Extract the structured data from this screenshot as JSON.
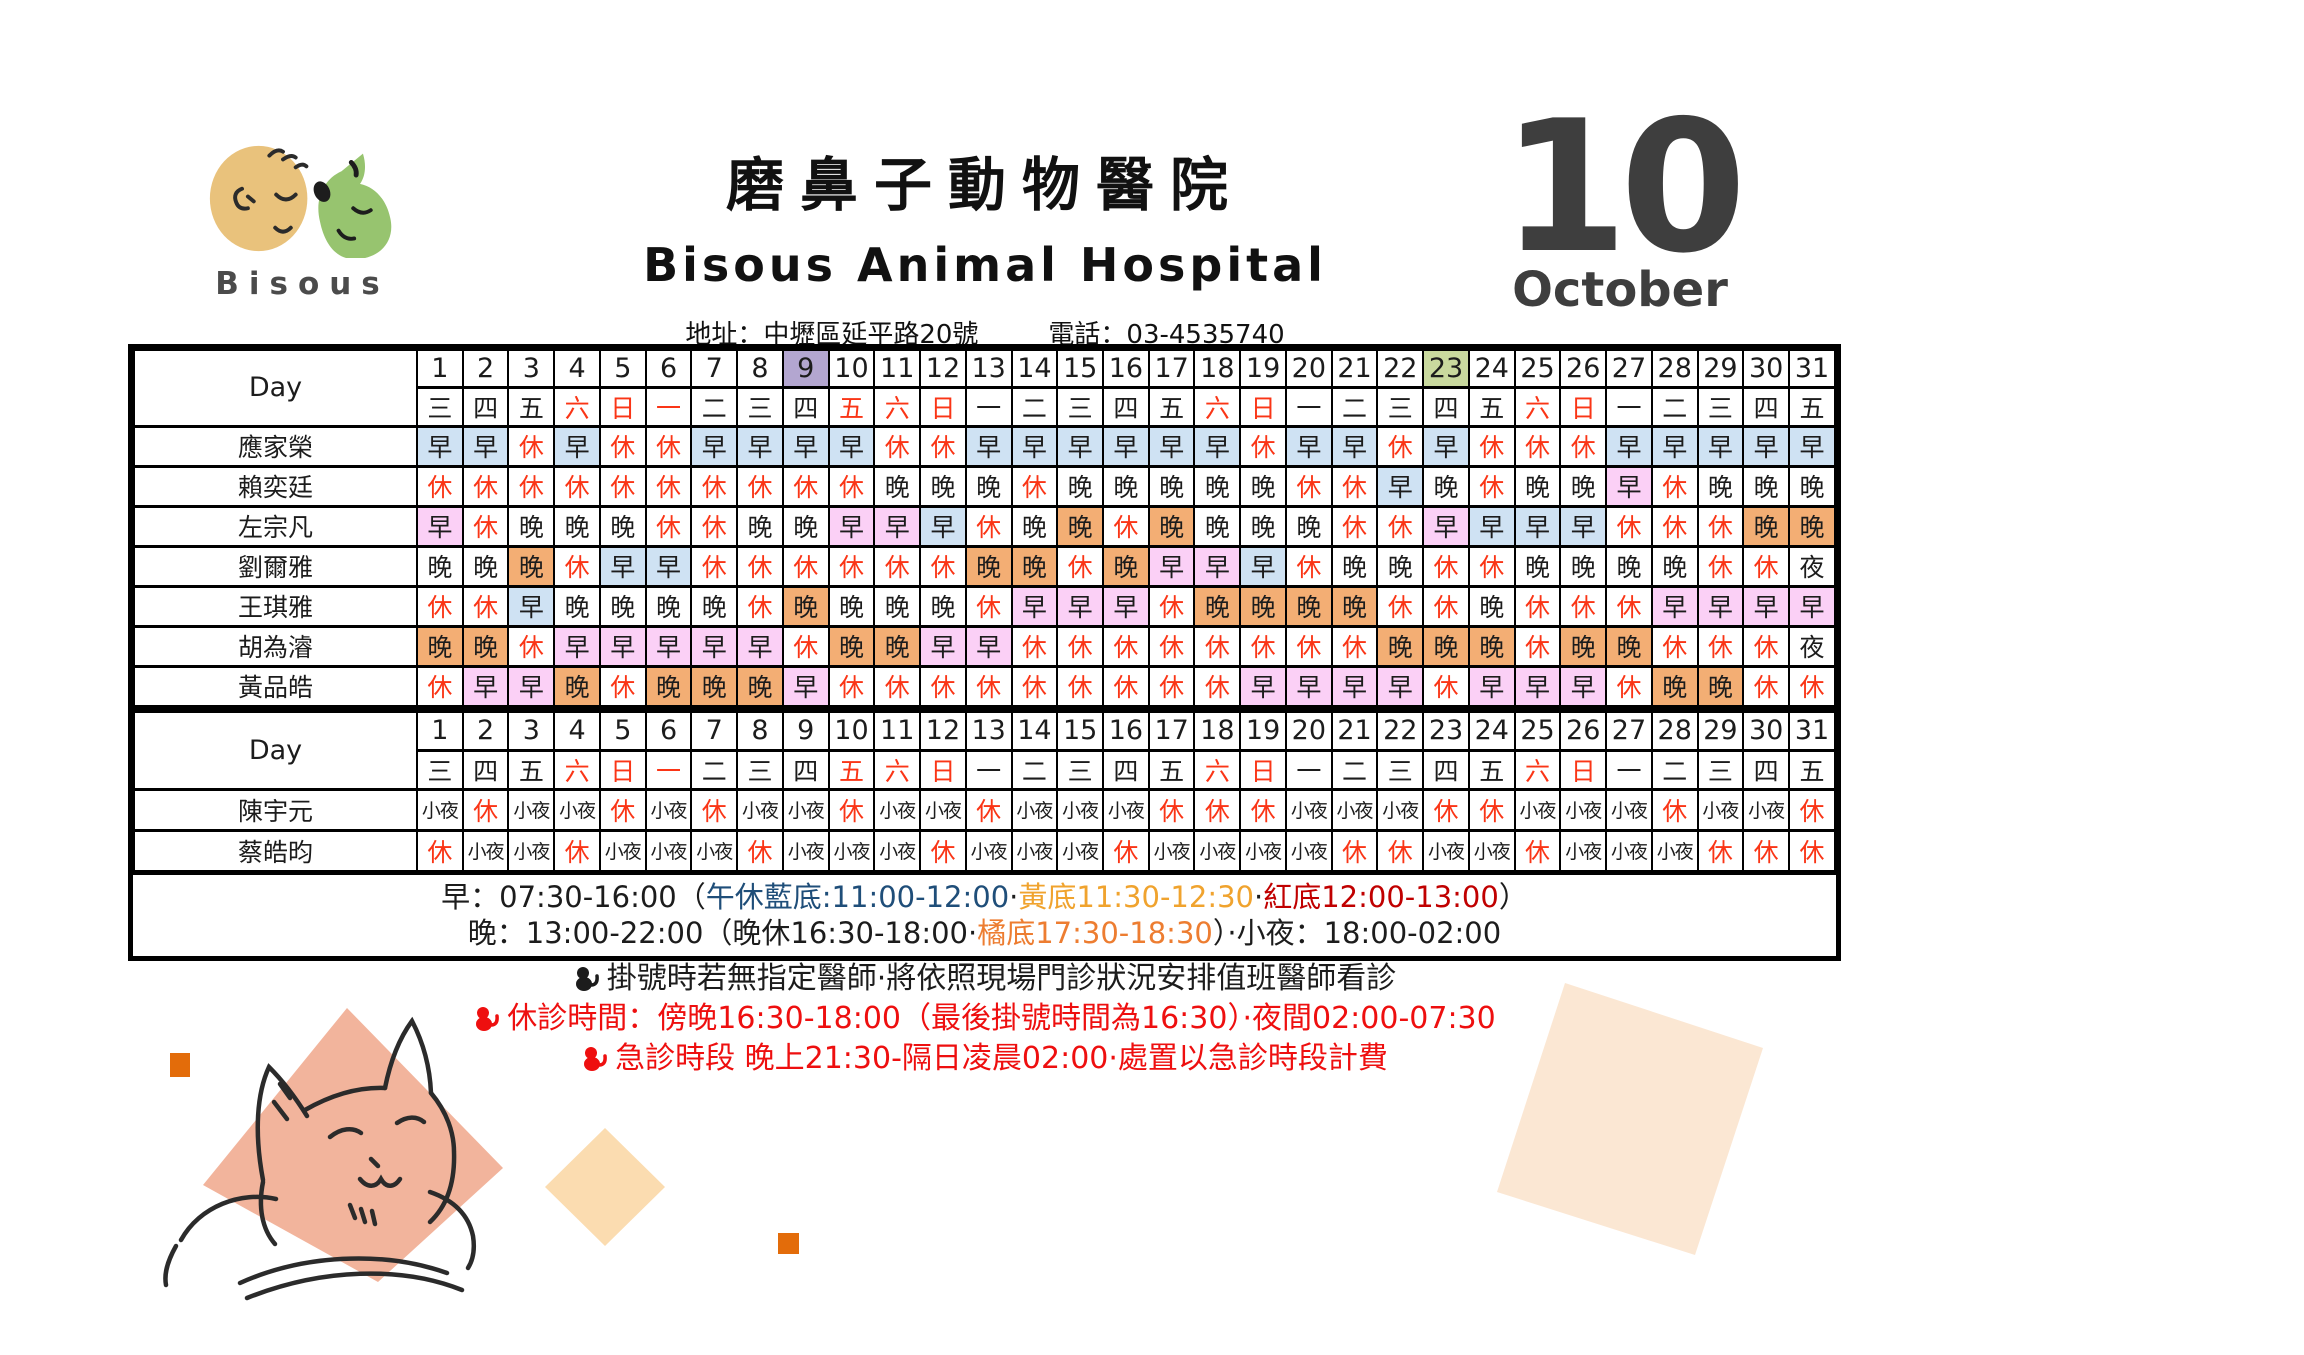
{
  "header": {
    "logo_text": "Bisous",
    "title_zh": "磨鼻子動物醫院",
    "title_en": "Bisous Animal Hospital",
    "address": "地址：中壢區延平路20號",
    "phone": "電話：03-4535740",
    "month_number": "10",
    "month_name": "October"
  },
  "colors": {
    "blue": "#cfe2f3",
    "pink": "#fbd0f6",
    "orange": "#f3ae74",
    "purple": "#b3a6d0",
    "green": "#c9d99e",
    "cell_red_text": "#fa3516",
    "note_red": "#ee0f0f",
    "legend_dark_blue": "#1f4e79",
    "legend_gold": "#f0a32e",
    "legend_dark_red": "#c00000",
    "legend_orange": "#ed7d31",
    "accent_orange": "#e36c0a",
    "salmon": "#f2b49c",
    "peach": "#fbdcb0",
    "cream": "#fbe7d3",
    "month_dark": "#3e3e3e",
    "logo_tan": "#e9c27c",
    "logo_green": "#97c46f"
  },
  "calendar": {
    "day_label": "Day",
    "days": [
      1,
      2,
      3,
      4,
      5,
      6,
      7,
      8,
      9,
      10,
      11,
      12,
      13,
      14,
      15,
      16,
      17,
      18,
      19,
      20,
      21,
      22,
      23,
      24,
      25,
      26,
      27,
      28,
      29,
      30,
      31
    ],
    "weekdays": [
      "三",
      "四",
      "五",
      "六",
      "日",
      "一",
      "二",
      "三",
      "四",
      "五",
      "六",
      "日",
      "一",
      "二",
      "三",
      "四",
      "五",
      "六",
      "日",
      "一",
      "二",
      "三",
      "四",
      "五",
      "六",
      "日",
      "一",
      "二",
      "三",
      "四",
      "五"
    ],
    "red_weekday_days": [
      4,
      5,
      6,
      10,
      11,
      12,
      18,
      19,
      25,
      26
    ],
    "day_highlights": {
      "9": "purple",
      "23": "green"
    }
  },
  "table1": {
    "rows": [
      {
        "name": "應家榮",
        "cells": [
          "早b",
          "早b",
          "休",
          "早b",
          "休",
          "休",
          "早b",
          "早b",
          "早b",
          "早b",
          "休",
          "休",
          "早b",
          "早b",
          "早b",
          "早b",
          "早b",
          "早b",
          "休",
          "早b",
          "早b",
          "休",
          "早b",
          "休",
          "休",
          "休",
          "早b",
          "早b",
          "早b",
          "早b",
          "早b"
        ]
      },
      {
        "name": "賴奕廷",
        "cells": [
          "休",
          "休",
          "休",
          "休",
          "休",
          "休",
          "休",
          "休",
          "休",
          "休",
          "晚",
          "晚",
          "晚",
          "休",
          "晚",
          "晚",
          "晚",
          "晚",
          "晚",
          "休",
          "休",
          "早b",
          "晚",
          "休",
          "晚",
          "晚",
          "早p",
          "休",
          "晚",
          "晚",
          "晚"
        ]
      },
      {
        "name": "左宗凡",
        "cells": [
          "早p",
          "休",
          "晚",
          "晚",
          "晚",
          "休",
          "休",
          "晚",
          "晚",
          "早p",
          "早p",
          "早b",
          "休",
          "晚",
          "晚o",
          "休",
          "晚o",
          "晚",
          "晚",
          "晚",
          "休",
          "休",
          "早p",
          "早b",
          "早b",
          "早b",
          "休",
          "休",
          "休",
          "晚o",
          "晚o"
        ]
      },
      {
        "name": "劉爾雅",
        "cells": [
          "晚",
          "晚",
          "晚o",
          "休",
          "早b",
          "早b",
          "休",
          "休",
          "休",
          "休",
          "休",
          "休",
          "晚o",
          "晚o",
          "休",
          "晚o",
          "早p",
          "早p",
          "早b",
          "休",
          "晚",
          "晚",
          "休",
          "休",
          "晚",
          "晚",
          "晚",
          "晚",
          "休",
          "休",
          "夜"
        ]
      },
      {
        "name": "王琪雅",
        "cells": [
          "休",
          "休",
          "早b",
          "晚",
          "晚",
          "晚",
          "晚",
          "休",
          "晚o",
          "晚",
          "晚",
          "晚",
          "休",
          "早p",
          "早p",
          "早p",
          "休",
          "晚o",
          "晚o",
          "晚o",
          "晚o",
          "休",
          "休",
          "晚",
          "休",
          "休",
          "休",
          "早p",
          "早p",
          "早p",
          "早p"
        ]
      },
      {
        "name": "胡為濬",
        "cells": [
          "晚o",
          "晚o",
          "休",
          "早p",
          "早p",
          "早p",
          "早p",
          "早p",
          "休",
          "晚o",
          "晚o",
          "早p",
          "早p",
          "休",
          "休",
          "休",
          "休",
          "休",
          "休",
          "休",
          "休",
          "晚o",
          "晚o",
          "晚o",
          "休",
          "晚o",
          "晚o",
          "休",
          "休",
          "休",
          "夜"
        ]
      },
      {
        "name": "黃品皓",
        "cells": [
          "休",
          "早p",
          "早p",
          "晚o",
          "休",
          "晚o",
          "晚o",
          "晚o",
          "早p",
          "休",
          "休",
          "休",
          "休",
          "休",
          "休",
          "休",
          "休",
          "休",
          "早p",
          "早p",
          "早p",
          "早p",
          "休",
          "早p",
          "早p",
          "早p",
          "休",
          "晚o",
          "晚o",
          "休",
          "休"
        ]
      }
    ]
  },
  "table2": {
    "rows": [
      {
        "name": "陳宇元",
        "cells": [
          "小夜",
          "休",
          "小夜",
          "小夜",
          "休",
          "小夜",
          "休",
          "小夜",
          "小夜",
          "休",
          "小夜",
          "小夜",
          "休",
          "小夜",
          "小夜",
          "小夜",
          "休",
          "休",
          "休",
          "小夜",
          "小夜",
          "小夜",
          "休",
          "休",
          "小夜",
          "小夜",
          "小夜",
          "休",
          "小夜",
          "小夜",
          "休"
        ]
      },
      {
        "name": "蔡皓昀",
        "cells": [
          "休",
          "小夜",
          "小夜",
          "休",
          "小夜",
          "小夜",
          "小夜",
          "休",
          "小夜",
          "小夜",
          "小夜",
          "休",
          "小夜",
          "小夜",
          "小夜",
          "休",
          "小夜",
          "小夜",
          "小夜",
          "小夜",
          "休",
          "休",
          "小夜",
          "小夜",
          "休",
          "小夜",
          "小夜",
          "小夜",
          "休",
          "休",
          "休"
        ]
      }
    ]
  },
  "legend": {
    "line1": [
      {
        "t": "早：07:30-16:00（",
        "c": "black"
      },
      {
        "t": "午休藍底:11:00-12:00",
        "c": "legend_dark_blue"
      },
      {
        "t": "·",
        "c": "black"
      },
      {
        "t": "黃底11:30-12:30",
        "c": "legend_gold"
      },
      {
        "t": "·",
        "c": "black"
      },
      {
        "t": "紅底12:00-13:00",
        "c": "legend_dark_red"
      },
      {
        "t": "）",
        "c": "black"
      }
    ],
    "line2": [
      {
        "t": "晚：13:00-22:00（晚休16:30-18:00·",
        "c": "black"
      },
      {
        "t": "橘底17:30-18:30",
        "c": "legend_orange"
      },
      {
        "t": "）·小夜：18:00-02:00",
        "c": "black"
      }
    ]
  },
  "notes": [
    {
      "icon": "cat-bullet-icon",
      "t": "掛號時若無指定醫師·將依照現場門診狀況安排值班醫師看診",
      "c": "black"
    },
    {
      "icon": "cat-bullet-icon",
      "t": "休診時間：傍晚16:30-18:00（最後掛號時間為16:30）·夜間02:00-07:30",
      "c": "red"
    },
    {
      "icon": "cat-bullet-icon",
      "t": "急診時段 晚上21:30-隔日凌晨02:00·處置以急診時段計費",
      "c": "red"
    }
  ],
  "decorations": [
    "orange-square-icon",
    "salmon-diamond-icon",
    "cat-sketch-icon",
    "peach-diamond-icon",
    "cream-square-icon"
  ]
}
